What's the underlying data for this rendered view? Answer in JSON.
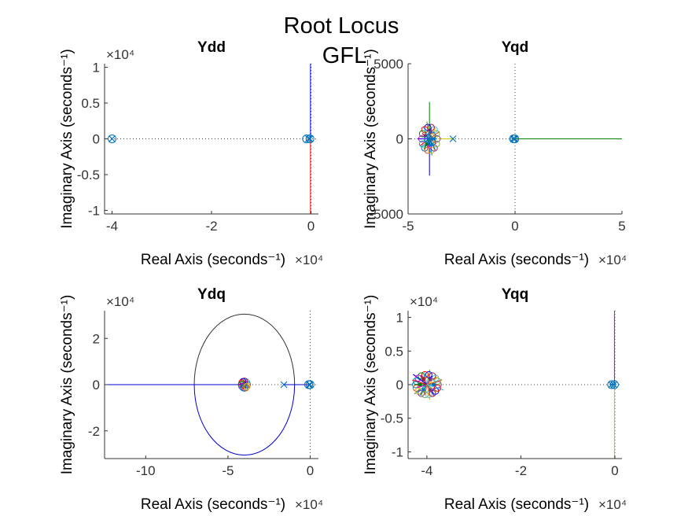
{
  "figure": {
    "title": "Root Locus",
    "subtitle": "GFL"
  },
  "chart_data": [
    {
      "type": "scatter",
      "title": "Ydd",
      "xlabel": "Real Axis (seconds⁻¹)",
      "ylabel": "Imaginary Axis (seconds⁻¹)",
      "x_multiplier": "×10⁴",
      "y_multiplier": "×10⁴",
      "xlim": [
        -4.15,
        0.15
      ],
      "ylim": [
        -1.05,
        1.05
      ],
      "xticks": [
        -4,
        -2,
        0
      ],
      "xtick_labels": [
        "-4",
        "-2",
        "0"
      ],
      "yticks": [
        -1,
        -0.5,
        0,
        0.5,
        1
      ],
      "ytick_labels": [
        "-1",
        "-0.5",
        "0",
        "0.5",
        "1"
      ],
      "poles": [
        [
          -4.0,
          0
        ],
        [
          -0.05,
          0
        ],
        [
          -0.02,
          0
        ]
      ],
      "zeros": [
        [
          -4.0,
          0
        ],
        [
          -0.09,
          0
        ],
        [
          -0.02,
          0
        ]
      ],
      "branches": [
        {
          "color": "#0000ff",
          "points": [
            [
              -0.01,
              0
            ],
            [
              -0.01,
              1.05
            ]
          ]
        },
        {
          "color": "#ff0000",
          "points": [
            [
              -0.01,
              0
            ],
            [
              -0.01,
              -1.05
            ]
          ]
        }
      ],
      "ellipses": [],
      "small_loci": []
    },
    {
      "type": "scatter",
      "title": "Yqd",
      "xlabel": "Real Axis (seconds⁻¹)",
      "ylabel": "Imaginary Axis (seconds⁻¹)",
      "x_multiplier": "×10⁴",
      "y_multiplier": "",
      "xlim": [
        -5,
        5
      ],
      "ylim": [
        -5000,
        5000
      ],
      "xticks": [
        -5,
        0,
        5
      ],
      "xtick_labels": [
        "-5",
        "0",
        "5"
      ],
      "yticks": [
        -5000,
        0,
        5000
      ],
      "ytick_labels": [
        "-5000",
        "0",
        "5000"
      ],
      "poles": [
        [
          -4.05,
          0
        ],
        [
          -2.9,
          0
        ],
        [
          -0.07,
          0
        ],
        [
          -0.01,
          0
        ]
      ],
      "zeros": [
        [
          -4.05,
          0
        ],
        [
          -3.9,
          200
        ],
        [
          -3.9,
          -200
        ],
        [
          -0.07,
          0
        ],
        [
          -0.01,
          0
        ]
      ],
      "branches": [
        {
          "color": "#008000",
          "points": [
            [
              0.0,
              0
            ],
            [
              5.0,
              0
            ]
          ]
        },
        {
          "color": "#cccc00",
          "points": [
            [
              -2.9,
              0
            ],
            [
              -3.6,
              0
            ]
          ]
        },
        {
          "color": "#008000",
          "points": [
            [
              -4.0,
              0
            ],
            [
              -4.0,
              2450
            ]
          ]
        },
        {
          "color": "#0000cc",
          "points": [
            [
              -4.0,
              0
            ],
            [
              -4.0,
              -2450
            ]
          ]
        }
      ],
      "ellipses": [],
      "small_loci": [
        {
          "center": [
            -4.0,
            0
          ],
          "extent": [
            0.6,
            1300
          ],
          "count": 14
        }
      ]
    },
    {
      "type": "scatter",
      "title": "Ydq",
      "xlabel": "Real Axis (seconds⁻¹)",
      "ylabel": "Imaginary Axis (seconds⁻¹)",
      "x_multiplier": "×10⁴",
      "y_multiplier": "×10⁴",
      "xlim": [
        -12.5,
        0.5
      ],
      "ylim": [
        -3.2,
        3.2
      ],
      "xticks": [
        -10,
        -5,
        0
      ],
      "xtick_labels": [
        "-10",
        "-5",
        "0"
      ],
      "yticks": [
        -2,
        0,
        2
      ],
      "ytick_labels": [
        "-2",
        "0",
        "2"
      ],
      "poles": [
        [
          -1.6,
          0
        ],
        [
          -0.06,
          0
        ],
        [
          -0.01,
          0
        ]
      ],
      "zeros": [
        [
          -0.1,
          0
        ],
        [
          -0.01,
          0
        ]
      ],
      "branches": [
        {
          "color": "#0000cc",
          "points": [
            [
              -12.5,
              0
            ],
            [
              -4.0,
              0
            ]
          ]
        },
        {
          "color": "#0000cc",
          "points": [
            [
              -1.6,
              0
            ],
            [
              0.0,
              0
            ]
          ]
        }
      ],
      "ellipses": [
        {
          "center": [
            -4.0,
            0
          ],
          "rx": 3.05,
          "ry": 3.05,
          "upper_color": "#333333",
          "lower_color": "#0000cc"
        }
      ],
      "small_loci": [
        {
          "center": [
            -4.0,
            0
          ],
          "extent": [
            0.3,
            0.25
          ],
          "count": 12
        }
      ]
    },
    {
      "type": "scatter",
      "title": "Yqq",
      "xlabel": "Real Axis (seconds⁻¹)",
      "ylabel": "Imaginary Axis (seconds⁻¹)",
      "x_multiplier": "×10⁴",
      "y_multiplier": "×10⁴",
      "xlim": [
        -4.4,
        0.15
      ],
      "ylim": [
        -1.1,
        1.1
      ],
      "xticks": [
        -4,
        -2,
        0
      ],
      "xtick_labels": [
        "-4",
        "-2",
        "0"
      ],
      "yticks": [
        -1,
        -0.5,
        0,
        0.5,
        1
      ],
      "ytick_labels": [
        "-1",
        "-0.5",
        "0",
        "0.5",
        "1"
      ],
      "poles": [
        [
          -0.07,
          0
        ],
        [
          -0.02,
          0
        ]
      ],
      "zeros": [
        [
          -0.07,
          0
        ],
        [
          -0.01,
          0
        ]
      ],
      "branches": [
        {
          "color": "#cc00cc",
          "points": [
            [
              -0.01,
              0
            ],
            [
              -0.01,
              1.1
            ]
          ]
        },
        {
          "color": "#cccc00",
          "points": [
            [
              -0.01,
              0
            ],
            [
              -0.01,
              -1.1
            ]
          ]
        }
      ],
      "ellipses": [],
      "small_loci": [
        {
          "center": [
            -4.0,
            0
          ],
          "extent": [
            0.4,
            0.25
          ],
          "count": 18
        }
      ]
    }
  ]
}
